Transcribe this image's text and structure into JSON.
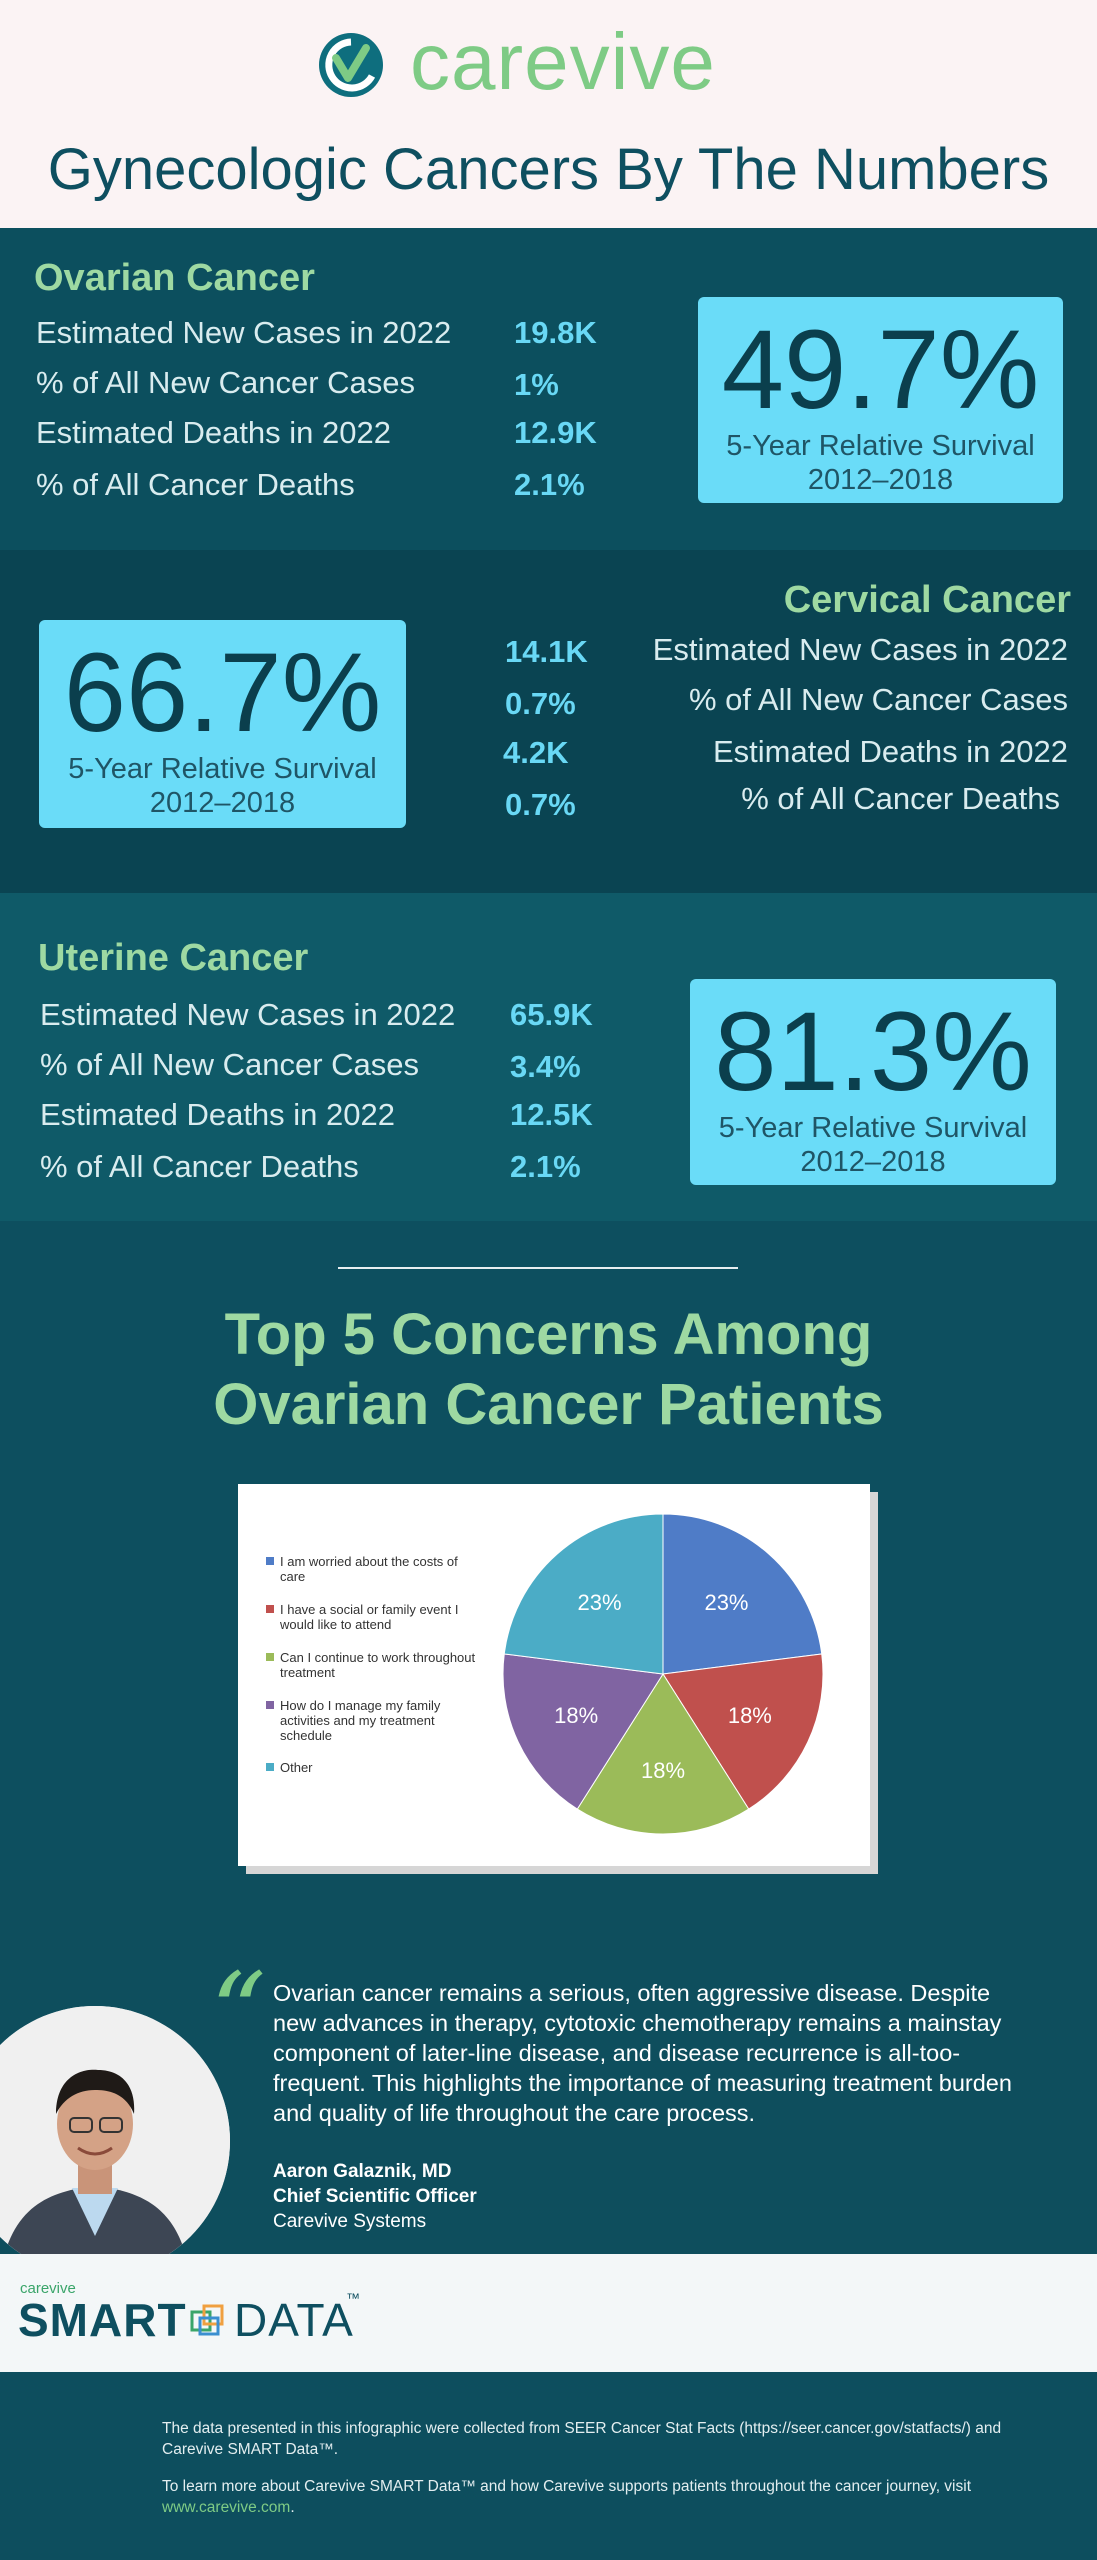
{
  "brand": {
    "name": "carevive"
  },
  "title": "Gynecologic Cancers By The Numbers",
  "ovarian": {
    "title": "Ovarian Cancer",
    "stats": [
      {
        "label": "Estimated New Cases in 2022",
        "value": "19.8K"
      },
      {
        "label": "% of All New Cancer Cases",
        "value": "1%"
      },
      {
        "label": "Estimated Deaths in 2022",
        "value": "12.9K"
      },
      {
        "label": "% of All Cancer Deaths",
        "value": "2.1%"
      }
    ],
    "survival": {
      "pct": "49.7%",
      "label": "5-Year Relative Survival",
      "years": "2012–2018"
    }
  },
  "cervical": {
    "title": "Cervical Cancer",
    "stats": [
      {
        "label": "Estimated New Cases in 2022",
        "value": "14.1K"
      },
      {
        "label": "% of All New Cancer Cases",
        "value": "0.7%"
      },
      {
        "label": "Estimated Deaths in 2022",
        "value": "4.2K"
      },
      {
        "label": "% of All Cancer Deaths",
        "value": "0.7%"
      }
    ],
    "survival": {
      "pct": "66.7%",
      "label": "5-Year Relative Survival",
      "years": "2012–2018"
    }
  },
  "uterine": {
    "title": "Uterine Cancer",
    "stats": [
      {
        "label": "Estimated New Cases in 2022",
        "value": "65.9K"
      },
      {
        "label": "% of All New Cancer Cases",
        "value": "3.4%"
      },
      {
        "label": "Estimated Deaths in 2022",
        "value": "12.5K"
      },
      {
        "label": "% of All Cancer Deaths",
        "value": "2.1%"
      }
    ],
    "survival": {
      "pct": "81.3%",
      "label": "5-Year Relative Survival",
      "years": "2012–2018"
    }
  },
  "concerns_title": {
    "line1": "Top 5 Concerns Among",
    "line2": "Ovarian Cancer Patients"
  },
  "chart_data": {
    "type": "pie",
    "title": "",
    "legend_placement": "left",
    "slices": [
      {
        "label": "I am worried about the costs of care",
        "value": 23,
        "display": "23%",
        "color": "#4f7cc7"
      },
      {
        "label": "I have a social or family event I would like to attend",
        "value": 18,
        "display": "18%",
        "color": "#c0504d"
      },
      {
        "label": "Can I continue to work throughout treatment",
        "value": 18,
        "display": "18%",
        "color": "#9bbb59"
      },
      {
        "label": "How do I manage my family activities and my treatment schedule",
        "value": 18,
        "display": "18%",
        "color": "#8064a2"
      },
      {
        "label": "Other",
        "value": 23,
        "display": "23%",
        "color": "#4bacc6"
      }
    ]
  },
  "quote": {
    "mark": "“",
    "text": "Ovarian cancer remains a serious, often aggressive disease. Despite new advances in therapy, cytotoxic chemotherapy remains a mainstay component of later-line disease, and disease recurrence is all-too-frequent. This highlights the importance of measuring treatment burden and quality of life throughout the care process.",
    "author": "Aaron Galaznik, MD",
    "role": "Chief Scientific Officer",
    "org": "Carevive Systems"
  },
  "smart_data": {
    "small": "carevive",
    "big1": "SMART",
    "big2": "DATA",
    "tm": "™"
  },
  "footer": {
    "line1": "The data presented in this infographic were collected from SEER Cancer Stat Facts (https://seer.cancer.gov/statfacts/) and Carevive SMART Data™.",
    "line2": "To learn more about Carevive SMART Data™ and how Carevive supports patients throughout the cancer journey, visit ",
    "link": "www.carevive.com",
    "link_suffix": "."
  }
}
